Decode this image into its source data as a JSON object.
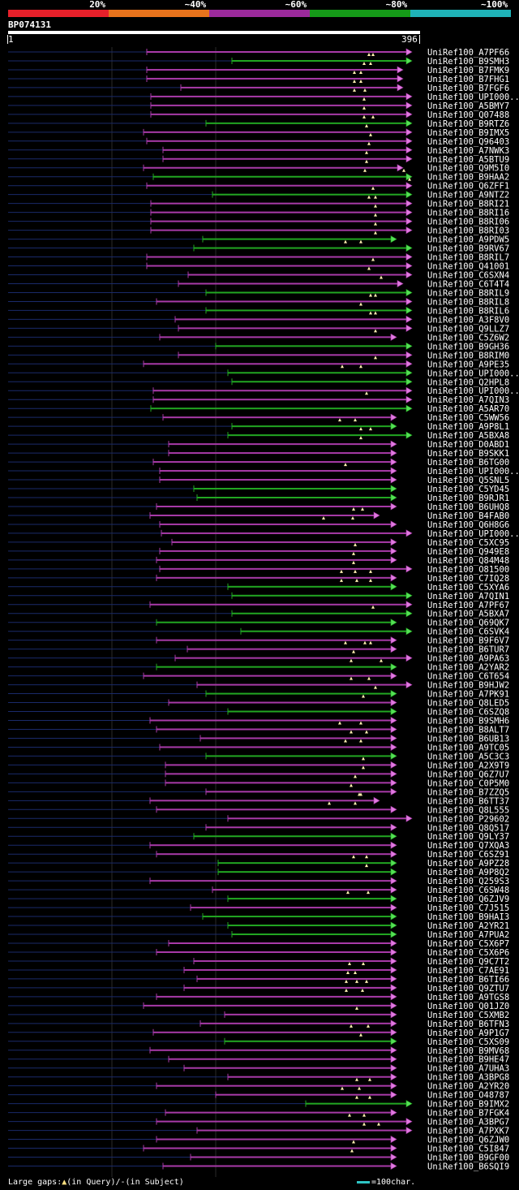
{
  "legend": {
    "segments": [
      {
        "label": "20%",
        "color": "#e8202a"
      },
      {
        "label": "~40%",
        "color": "#e8731c"
      },
      {
        "label": "~60%",
        "color": "#9c2a9c"
      },
      {
        "label": "~80%",
        "color": "#159a18"
      },
      {
        "label": "~100%",
        "color": "#1fb3b8"
      }
    ]
  },
  "query": {
    "name": "BP074131",
    "start": "1",
    "end": "396"
  },
  "footer": {
    "gaps_label": "Large gaps:",
    "query_gap": "(in Query)/",
    "dash": "-",
    "subject_gap": "(in Subject)",
    "scale_label": "=100char."
  },
  "hits": [
    [
      "UniRef100_A7PF66",
      "m",
      181,
      508,
      [
        455,
        460
      ]
    ],
    [
      "UniRef100_B9SMH3",
      "g",
      286,
      508,
      [
        449,
        457
      ]
    ],
    [
      "UniRef100_B7FMK9",
      "m",
      181,
      497,
      [
        437,
        445
      ]
    ],
    [
      "UniRef100_B7FHG1",
      "m",
      181,
      497,
      [
        437,
        445
      ]
    ],
    [
      "UniRef100_B7FGF6",
      "m",
      223,
      497,
      [
        437,
        450
      ]
    ],
    [
      "UniRef100_UPI000..",
      "m",
      186,
      508,
      [
        449
      ]
    ],
    [
      "UniRef100_A5BMY7",
      "m",
      186,
      508,
      [
        449
      ]
    ],
    [
      "UniRef100_Q07488",
      "m",
      186,
      508,
      [
        449,
        460
      ]
    ],
    [
      "UniRef100_B9RTZ6",
      "g",
      254,
      508,
      [
        452
      ]
    ],
    [
      "UniRef100_B9IMX5",
      "m",
      177,
      508,
      [
        457
      ]
    ],
    [
      "UniRef100_Q96403",
      "m",
      181,
      508,
      [
        455
      ]
    ],
    [
      "UniRef100_A7NWK3",
      "m",
      201,
      508,
      [
        452
      ]
    ],
    [
      "UniRef100_A5BTU9",
      "m",
      201,
      508,
      [
        452
      ]
    ],
    [
      "UniRef100_Q9M5I0",
      "m",
      177,
      497,
      [
        450,
        498
      ]
    ],
    [
      "UniRef100_B9HAA2",
      "g",
      189,
      508,
      [
        505
      ]
    ],
    [
      "UniRef100_Q6ZFF1",
      "m",
      181,
      508,
      [
        460
      ]
    ],
    [
      "UniRef100_A9NTZ2",
      "g",
      262,
      508,
      [
        455,
        463
      ]
    ],
    [
      "UniRef100_B8RI21",
      "m",
      186,
      508,
      [
        463
      ]
    ],
    [
      "UniRef100_B8RI16",
      "m",
      186,
      508,
      [
        463
      ]
    ],
    [
      "UniRef100_B8RI06",
      "m",
      186,
      508,
      [
        463
      ]
    ],
    [
      "UniRef100_B8RI03",
      "m",
      186,
      508,
      [
        463
      ]
    ],
    [
      "UniRef100_A9PDW5",
      "g",
      250,
      489,
      [
        426,
        445
      ]
    ],
    [
      "UniRef100_B9RV67",
      "g",
      239,
      508,
      []
    ],
    [
      "UniRef100_B8RIL7",
      "m",
      181,
      508,
      [
        460
      ]
    ],
    [
      "UniRef100_Q41001",
      "m",
      181,
      508,
      [
        455
      ]
    ],
    [
      "UniRef100_C6SXN4",
      "m",
      232,
      508,
      [
        470
      ]
    ],
    [
      "UniRef100_C6T4T4",
      "m",
      220,
      497,
      []
    ],
    [
      "UniRef100_B8RIL9",
      "g",
      254,
      508,
      [
        457,
        463
      ]
    ],
    [
      "UniRef100_B8RIL8",
      "m",
      193,
      508,
      [
        445
      ]
    ],
    [
      "UniRef100_B8RIL6",
      "g",
      254,
      508,
      [
        457,
        463
      ]
    ],
    [
      "UniRef100_A3F8V0",
      "m",
      216,
      508,
      []
    ],
    [
      "UniRef100_Q9LLZ7",
      "m",
      220,
      508,
      [
        463
      ]
    ],
    [
      "UniRef100_C5Z6W2",
      "m",
      197,
      489,
      []
    ],
    [
      "UniRef100_B9GH36",
      "g",
      266,
      508,
      []
    ],
    [
      "UniRef100_B8RIM0",
      "m",
      220,
      508,
      [
        463
      ]
    ],
    [
      "UniRef100_A9PE35",
      "m",
      177,
      508,
      [
        422,
        445
      ]
    ],
    [
      "UniRef100_UPI000..",
      "g",
      281,
      508,
      []
    ],
    [
      "UniRef100_Q2HPL8",
      "g",
      286,
      508,
      []
    ],
    [
      "UniRef100_UPI000..",
      "m",
      189,
      508,
      [
        452
      ]
    ],
    [
      "UniRef100_A7QIN3",
      "m",
      189,
      508,
      []
    ],
    [
      "UniRef100_A5AR70",
      "g",
      186,
      508,
      []
    ],
    [
      "UniRef100_C5WW56",
      "m",
      201,
      489,
      [
        419,
        438
      ]
    ],
    [
      "UniRef100_A9P8L1",
      "g",
      286,
      489,
      [
        445,
        457
      ]
    ],
    [
      "UniRef100_A5BXA8",
      "g",
      281,
      508,
      [
        445
      ]
    ],
    [
      "UniRef100_D0ABD1",
      "m",
      208,
      489,
      []
    ],
    [
      "UniRef100_B9SKK1",
      "m",
      208,
      489,
      []
    ],
    [
      "UniRef100_B6TG00",
      "m",
      189,
      489,
      [
        426
      ]
    ],
    [
      "UniRef100_UPI000..",
      "m",
      197,
      489,
      []
    ],
    [
      "UniRef100_Q5SNL5",
      "m",
      197,
      489,
      []
    ],
    [
      "UniRef100_C5YD45",
      "g",
      239,
      489,
      []
    ],
    [
      "UniRef100_B9RJR1",
      "g",
      243,
      489,
      []
    ],
    [
      "UniRef100_B6UHQ8",
      "m",
      193,
      489,
      [
        436,
        447
      ]
    ],
    [
      "UniRef100_B4FAB0",
      "m",
      185,
      468,
      [
        399,
        435
      ]
    ],
    [
      "UniRef100_Q6H8G6",
      "m",
      197,
      489,
      []
    ],
    [
      "UniRef100_UPI000..",
      "m",
      199,
      508,
      []
    ],
    [
      "UniRef100_C5XC95",
      "m",
      212,
      489,
      [
        438
      ]
    ],
    [
      "UniRef100_Q949E8",
      "m",
      197,
      489,
      [
        436
      ]
    ],
    [
      "UniRef100_Q84M48",
      "m",
      193,
      489,
      [
        436
      ]
    ],
    [
      "UniRef100_O81500",
      "m",
      197,
      508,
      [
        421,
        438,
        457
      ]
    ],
    [
      "UniRef100_C7IQ28",
      "m",
      193,
      489,
      [
        421,
        440,
        457
      ]
    ],
    [
      "UniRef100_C5XYA6",
      "g",
      281,
      489,
      []
    ],
    [
      "UniRef100_A7QIN1",
      "g",
      286,
      508,
      []
    ],
    [
      "UniRef100_A7PF67",
      "m",
      185,
      508,
      [
        460
      ]
    ],
    [
      "UniRef100_A5BXA7",
      "g",
      286,
      508,
      []
    ],
    [
      "UniRef100_Q69QK7",
      "g",
      193,
      489,
      []
    ],
    [
      "UniRef100_C6SVK4",
      "g",
      297,
      508,
      []
    ],
    [
      "UniRef100_B9F6V7",
      "m",
      193,
      489,
      [
        426,
        450,
        457
      ]
    ],
    [
      "UniRef100_B6TUR7",
      "m",
      231,
      489,
      [
        436
      ]
    ],
    [
      "UniRef100_A9PA63",
      "m",
      216,
      508,
      [
        433,
        470
      ]
    ],
    [
      "UniRef100_A2YAR2",
      "g",
      193,
      489,
      []
    ],
    [
      "UniRef100_C6T654",
      "m",
      177,
      489,
      [
        433,
        455
      ]
    ],
    [
      "UniRef100_B9HJW2",
      "m",
      243,
      508,
      [
        463
      ]
    ],
    [
      "UniRef100_A7PK91",
      "g",
      254,
      489,
      [
        448
      ]
    ],
    [
      "UniRef100_Q8LED5",
      "m",
      208,
      489,
      []
    ],
    [
      "UniRef100_C6SZQ8",
      "g",
      281,
      489,
      []
    ],
    [
      "UniRef100_B9SMH6",
      "m",
      185,
      489,
      [
        419,
        445
      ]
    ],
    [
      "UniRef100_B8ALT7",
      "m",
      193,
      489,
      [
        433,
        452
      ]
    ],
    [
      "UniRef100_B6UB13",
      "m",
      247,
      489,
      [
        426,
        445
      ]
    ],
    [
      "UniRef100_A9TC05",
      "m",
      197,
      489,
      []
    ],
    [
      "UniRef100_A5C3C3",
      "g",
      254,
      489,
      [
        448
      ]
    ],
    [
      "UniRef100_A2X9T9",
      "m",
      204,
      489,
      [
        448
      ]
    ],
    [
      "UniRef100_Q6Z7U7",
      "m",
      204,
      489,
      [
        438
      ]
    ],
    [
      "UniRef100_C0P5M0",
      "m",
      204,
      489,
      [
        433
      ]
    ],
    [
      "UniRef100_B7ZZQ5",
      "m",
      254,
      489,
      [
        443,
        445
      ]
    ],
    [
      "UniRef100_B6TT37",
      "m",
      185,
      468,
      [
        406,
        438
      ]
    ],
    [
      "UniRef100_Q8L555",
      "m",
      193,
      489,
      []
    ],
    [
      "UniRef100_P29602",
      "m",
      281,
      508,
      []
    ],
    [
      "UniRef100_Q8Q517",
      "m",
      254,
      489,
      []
    ],
    [
      "UniRef100_Q9LY37",
      "g",
      239,
      489,
      []
    ],
    [
      "UniRef100_Q7XQA3",
      "m",
      185,
      489,
      []
    ],
    [
      "UniRef100_C6SZ91",
      "m",
      193,
      489,
      [
        436,
        452
      ]
    ],
    [
      "UniRef100_A9PZ28",
      "g",
      269,
      489,
      [
        452
      ]
    ],
    [
      "UniRef100_A9P8Q2",
      "g",
      269,
      489,
      []
    ],
    [
      "UniRef100_Q259S3",
      "m",
      185,
      489,
      []
    ],
    [
      "UniRef100_C6SW48",
      "m",
      262,
      489,
      [
        429,
        454
      ]
    ],
    [
      "UniRef100_Q6ZJV9",
      "g",
      281,
      489,
      []
    ],
    [
      "UniRef100_C7J515",
      "m",
      235,
      489,
      []
    ],
    [
      "UniRef100_B9HAI3",
      "g",
      250,
      489,
      []
    ],
    [
      "UniRef100_A2YR21",
      "g",
      281,
      489,
      []
    ],
    [
      "UniRef100_A7PUA2",
      "g",
      286,
      489,
      []
    ],
    [
      "UniRef100_C5X6P7",
      "m",
      208,
      489,
      []
    ],
    [
      "UniRef100_C5X6P6",
      "m",
      193,
      489,
      []
    ],
    [
      "UniRef100_Q9C7T2",
      "m",
      239,
      489,
      [
        431,
        448
      ]
    ],
    [
      "UniRef100_C7AE91",
      "m",
      227,
      489,
      [
        429,
        438
      ]
    ],
    [
      "UniRef100_B6TI66",
      "m",
      243,
      489,
      [
        427,
        440,
        452
      ]
    ],
    [
      "UniRef100_Q9ZTU7",
      "m",
      227,
      489,
      [
        427,
        447
      ]
    ],
    [
      "UniRef100_A9TGS8",
      "m",
      193,
      489,
      []
    ],
    [
      "UniRef100_Q01JZ0",
      "m",
      177,
      489,
      [
        440
      ]
    ],
    [
      "UniRef100_C5XMB2",
      "m",
      277,
      489,
      []
    ],
    [
      "UniRef100_B6TFN3",
      "m",
      247,
      489,
      [
        433,
        454
      ]
    ],
    [
      "UniRef100_A9P1G7",
      "m",
      189,
      489,
      [
        445
      ]
    ],
    [
      "UniRef100_C5XS09",
      "g",
      277,
      489,
      []
    ],
    [
      "UniRef100_B9MV68",
      "m",
      185,
      489,
      []
    ],
    [
      "UniRef100_B9HE47",
      "m",
      208,
      489,
      []
    ],
    [
      "UniRef100_A7UHA3",
      "m",
      227,
      489,
      []
    ],
    [
      "UniRef100_A3BPG8",
      "m",
      281,
      489,
      [
        440,
        456
      ]
    ],
    [
      "UniRef100_A2YR20",
      "m",
      193,
      489,
      [
        422,
        443
      ]
    ],
    [
      "UniRef100_O48787",
      "m",
      266,
      489,
      [
        440,
        456
      ]
    ],
    [
      "UniRef100_B9IMX2",
      "g",
      377,
      508,
      []
    ],
    [
      "UniRef100_B7FGK4",
      "m",
      204,
      489,
      [
        431,
        449
      ]
    ],
    [
      "UniRef100_A3BPG7",
      "m",
      193,
      508,
      [
        449,
        467
      ]
    ],
    [
      "UniRef100_A7PXK7",
      "m",
      243,
      508,
      []
    ],
    [
      "UniRef100_Q6ZJW0",
      "m",
      193,
      489,
      [
        436
      ]
    ],
    [
      "UniRef100_C5I847",
      "m",
      177,
      489,
      [
        434
      ]
    ],
    [
      "UniRef100_B9GF00",
      "m",
      235,
      489,
      []
    ],
    [
      "UniRef100_B6SQI9",
      "m",
      201,
      489,
      []
    ]
  ]
}
